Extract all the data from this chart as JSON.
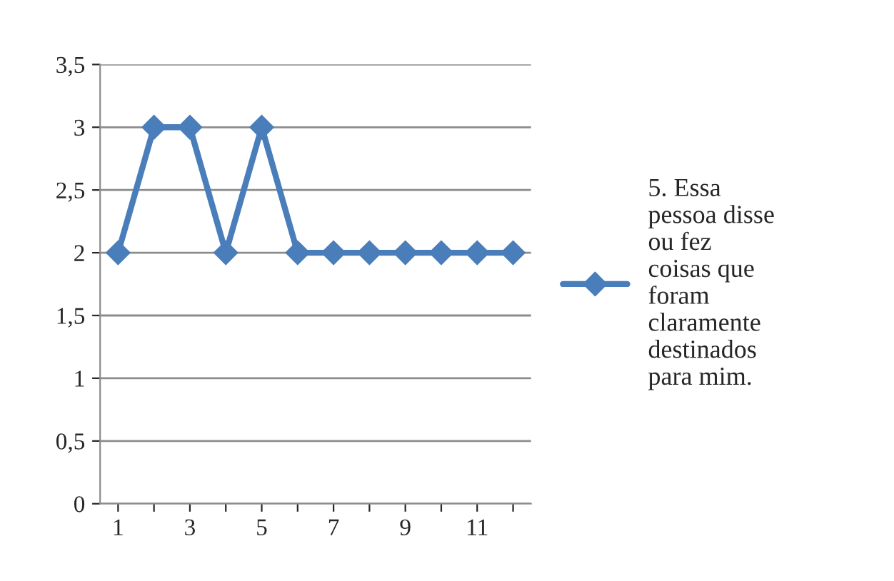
{
  "chart_data": {
    "type": "line",
    "categories": [
      "1",
      null,
      "3",
      null,
      "5",
      null,
      "7",
      null,
      "9",
      null,
      "11",
      null
    ],
    "series": [
      {
        "name": "5. Essa pessoa disse ou fez coisas que foram claramente destinados para mim.",
        "color": "#4a7ebb",
        "values": [
          2,
          3,
          3,
          2,
          3,
          2,
          2,
          2,
          2,
          2,
          2,
          2
        ]
      }
    ],
    "ylim": [
      0,
      3.5
    ],
    "yticks": [
      0,
      {
        "value": 0.5,
        "label": "0,5"
      },
      1,
      {
        "value": 1.5,
        "label": "1,5"
      },
      2,
      {
        "value": 2.5,
        "label": "2,5"
      },
      3,
      {
        "value": 3.5,
        "label": "3,5"
      }
    ],
    "grid": "y",
    "legend": "right",
    "marker": "diamond",
    "line_style": "solid"
  }
}
